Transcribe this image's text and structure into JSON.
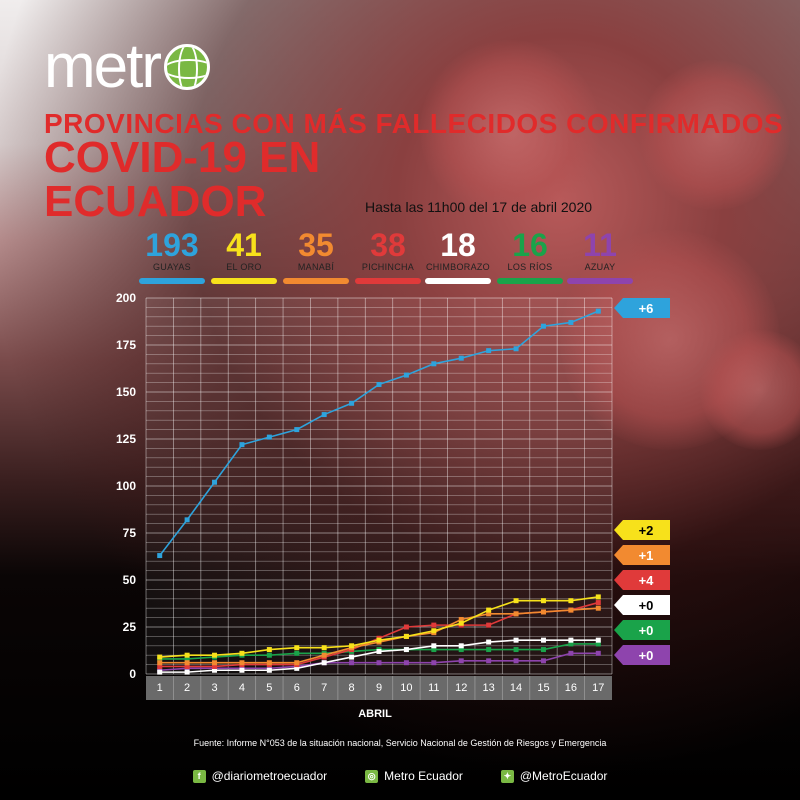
{
  "brand": {
    "logo_text": "metr"
  },
  "header": {
    "title_top": "PROVINCIAS CON MÁS FALLECIDOS CONFIRMADOS",
    "title_main": "COVID-19 EN ECUADOR",
    "subtitle": "Hasta las 11h00 del 17 de abril 2020"
  },
  "chart_data": {
    "type": "line",
    "xlabel": "ABRIL",
    "ylabel": "",
    "x": [
      1,
      2,
      3,
      4,
      5,
      6,
      7,
      8,
      9,
      10,
      11,
      12,
      13,
      14,
      15,
      16,
      17
    ],
    "ylim": [
      0,
      200
    ],
    "yticks": [
      0,
      25,
      50,
      75,
      100,
      125,
      150,
      175,
      200
    ],
    "grid": true,
    "series": [
      {
        "name": "GUAYAS",
        "total": "193",
        "delta": "+6",
        "color": "#2ea3dc",
        "values": [
          63,
          82,
          102,
          122,
          126,
          130,
          138,
          144,
          154,
          159,
          165,
          168,
          172,
          173,
          185,
          187,
          193
        ]
      },
      {
        "name": "EL ORO",
        "total": "41",
        "delta": "+2",
        "color": "#f7e11b",
        "values": [
          9,
          10,
          10,
          11,
          13,
          14,
          14,
          15,
          18,
          20,
          23,
          27,
          34,
          39,
          39,
          39,
          41
        ]
      },
      {
        "name": "MANABÍ",
        "total": "35",
        "delta": "+1",
        "color": "#f28a30",
        "values": [
          6,
          6,
          6,
          6,
          6,
          6,
          10,
          14,
          17,
          20,
          22,
          29,
          32,
          32,
          33,
          34,
          35
        ]
      },
      {
        "name": "PICHINCHA",
        "total": "38",
        "delta": "+4",
        "color": "#e03a3a",
        "values": [
          4,
          4,
          4,
          5,
          5,
          5,
          9,
          13,
          19,
          25,
          26,
          26,
          26,
          32,
          33,
          34,
          38
        ]
      },
      {
        "name": "CHIMBORAZO",
        "total": "18",
        "delta": "+0",
        "color": "#ffffff",
        "values": [
          1,
          1,
          2,
          2,
          2,
          3,
          6,
          9,
          12,
          13,
          15,
          15,
          17,
          18,
          18,
          18,
          18
        ]
      },
      {
        "name": "LOS RÍOS",
        "total": "16",
        "delta": "+0",
        "color": "#1aa34a",
        "values": [
          8,
          8,
          9,
          10,
          10,
          11,
          11,
          12,
          13,
          13,
          13,
          13,
          13,
          13,
          13,
          16,
          16
        ]
      },
      {
        "name": "AZUAY",
        "total": "11",
        "delta": "+0",
        "color": "#8e44ad",
        "values": [
          2,
          3,
          3,
          3,
          3,
          4,
          6,
          6,
          6,
          6,
          6,
          7,
          7,
          7,
          7,
          11,
          11
        ]
      }
    ]
  },
  "footer": {
    "source": "Fuente: Informe N°053 de la situación nacional, Servicio Nacional de Gestión de Riesgos y Emergencia",
    "facebook": "@diariometroecuador",
    "instagram": "Metro Ecuador",
    "twitter": "@MetroEcuador"
  }
}
